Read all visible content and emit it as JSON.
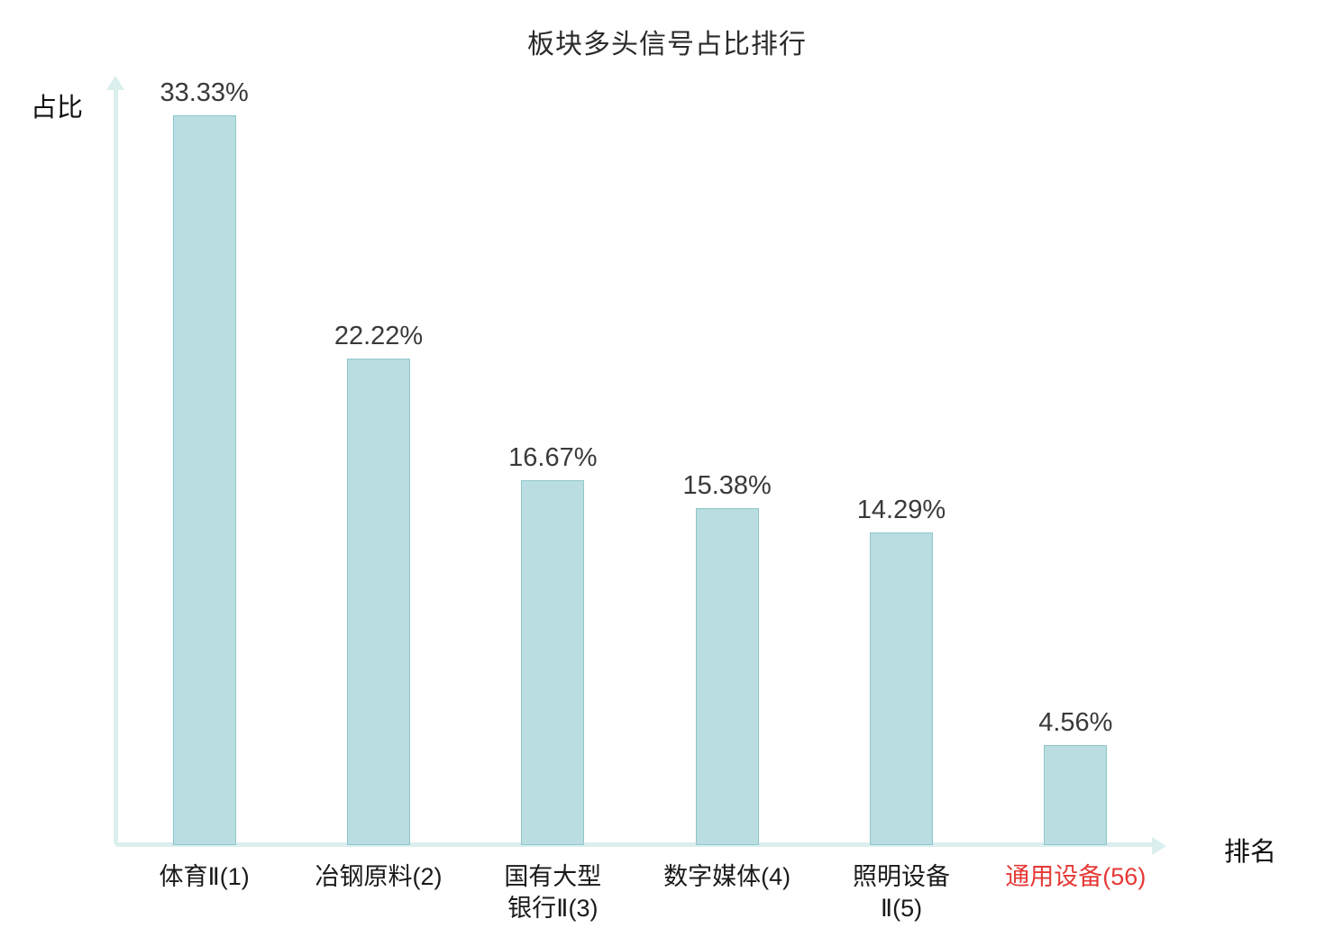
{
  "title": "板块多头信号占比排行",
  "axes": {
    "y_label": "占比",
    "x_label": "排名"
  },
  "colors": {
    "bar_fill": "#b9dde1",
    "bar_border": "#8fc6cc",
    "axis": "#daefee",
    "value_text": "#3a3a3a",
    "category_text": "#1a1a1a",
    "highlight_text": "#e53935"
  },
  "chart_data": {
    "type": "bar",
    "title": "板块多头信号占比排行",
    "xlabel": "排名",
    "ylabel": "占比",
    "ylim": [
      0,
      35
    ],
    "grid": false,
    "legend": "none",
    "categories": [
      "体育Ⅱ(1)",
      "冶钢原料(2)",
      "国有大型\n银行Ⅱ(3)",
      "数字媒体(4)",
      "照明设备\nⅡ(5)",
      "通用设备(56)"
    ],
    "values": [
      33.33,
      22.22,
      16.67,
      15.38,
      14.29,
      4.56
    ],
    "value_labels": [
      "33.33%",
      "22.22%",
      "16.67%",
      "15.38%",
      "14.29%",
      "4.56%"
    ],
    "highlight_index": 5
  }
}
